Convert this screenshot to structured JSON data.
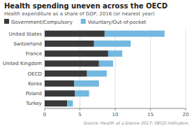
{
  "chart_data": {
    "type": "bar",
    "orientation": "horizontal",
    "stacked": true,
    "title": "Health spending uneven across the OECD",
    "subtitle": "Health expenditure as a share of GDP, 2016 (or nearest year)",
    "annotations": [
      "Source: Health at a Glance 2017: OECD Indicators"
    ],
    "categories": [
      "United States",
      "Switzerland",
      "France",
      "United Kingdom",
      "OECD",
      "Korea",
      "Poland",
      "Turkey"
    ],
    "series": [
      {
        "name": "Government/Compulsory",
        "color": "#3a3a3a",
        "values": [
          8.5,
          7.0,
          9.0,
          7.7,
          6.0,
          4.2,
          4.3,
          3.2
        ]
      },
      {
        "name": "Voluntary/Out-of-pocket",
        "color": "#72b8e0",
        "values": [
          8.5,
          5.2,
          2.0,
          2.0,
          2.8,
          3.5,
          2.0,
          0.8
        ]
      }
    ],
    "xlim": [
      0,
      20
    ],
    "xticks": [
      0,
      5,
      10,
      15,
      20
    ],
    "grid": true,
    "legend": "top"
  }
}
